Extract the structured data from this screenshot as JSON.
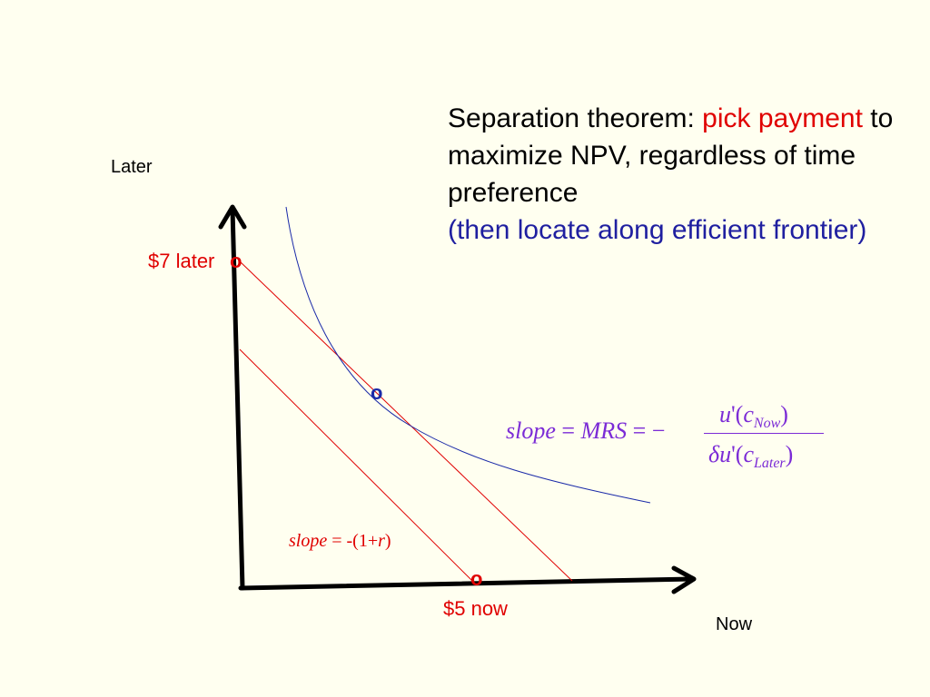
{
  "title": {
    "part1": "Separation theorem: ",
    "highlight": "pick payment",
    "part2": " to maximize NPV, regardless of time preference",
    "note": "(then locate along efficient frontier)"
  },
  "axes": {
    "y_label": "Later",
    "x_label": "Now"
  },
  "points": {
    "later_label": "$7 later",
    "now_label": "$5 now",
    "marker": "o"
  },
  "slope_label": {
    "lhs": "slope",
    "eq": " = -(1+",
    "r": "r",
    "close": ")"
  },
  "mrs_formula": {
    "lhs": "slope",
    "eq1": "=",
    "mrs": "MRS",
    "eq2": "= −",
    "num_u": "u",
    "num_prime": "'(",
    "num_c": "c",
    "num_sub": "Now",
    "num_close": ")",
    "den_delta": "δ",
    "den_u": "u",
    "den_prime": "'(",
    "den_c": "c",
    "den_sub": "Later",
    "den_close": ")"
  },
  "colors": {
    "axis": "#000000",
    "budget_line": "#e00000",
    "indifference_curve": "#1a2aa8",
    "title_highlight": "#e00000",
    "title_note": "#1f1fa0",
    "formula": "#7b2bd6",
    "tangency_marker": "#1a2aa8"
  }
}
